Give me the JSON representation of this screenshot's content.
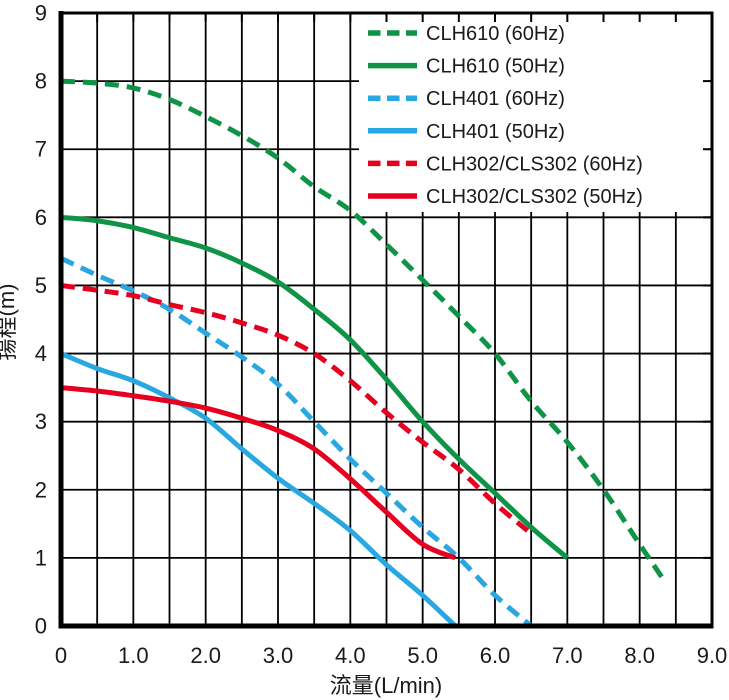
{
  "chart_data": {
    "type": "line",
    "title": "",
    "xlabel": "流量(L/min)",
    "ylabel": "揚程(m)",
    "xlim": [
      0,
      9
    ],
    "ylim": [
      0,
      9
    ],
    "x_ticks": {
      "values": [
        0,
        1,
        2,
        3,
        4,
        5,
        6,
        7,
        8,
        9
      ],
      "labels": [
        "0",
        "1.0",
        "2.0",
        "3.0",
        "4.0",
        "5.0",
        "6.0",
        "7.0",
        "8.0",
        "9.0"
      ]
    },
    "y_ticks": {
      "values": [
        0,
        1,
        2,
        3,
        4,
        5,
        6,
        7,
        8,
        9
      ],
      "labels": [
        "0",
        "1",
        "2",
        "3",
        "4",
        "5",
        "6",
        "7",
        "8",
        "9"
      ]
    },
    "x_grid_step": 0.5,
    "y_grid_step": 1,
    "grid": true,
    "legend_position": "top-right",
    "axis_color": "#000000",
    "text_color": "#1a1a1a",
    "series": [
      {
        "name": "CLH610 (60Hz)",
        "color": "#0f9447",
        "style": "dashed",
        "points": [
          [
            0,
            8.0
          ],
          [
            0.5,
            7.97
          ],
          [
            1,
            7.9
          ],
          [
            1.5,
            7.73
          ],
          [
            2,
            7.48
          ],
          [
            2.5,
            7.2
          ],
          [
            3,
            6.87
          ],
          [
            3.5,
            6.45
          ],
          [
            4,
            6.1
          ],
          [
            4.5,
            5.6
          ],
          [
            5,
            5.08
          ],
          [
            5.5,
            4.55
          ],
          [
            6,
            4.0
          ],
          [
            6.5,
            3.3
          ],
          [
            7,
            2.7
          ],
          [
            7.5,
            2.0
          ],
          [
            8,
            1.2
          ],
          [
            8.35,
            0.65
          ]
        ]
      },
      {
        "name": "CLH610 (50Hz)",
        "color": "#0f9447",
        "style": "solid",
        "points": [
          [
            0,
            6.0
          ],
          [
            0.5,
            5.95
          ],
          [
            1,
            5.85
          ],
          [
            1.5,
            5.7
          ],
          [
            2,
            5.55
          ],
          [
            2.5,
            5.33
          ],
          [
            3,
            5.05
          ],
          [
            3.5,
            4.65
          ],
          [
            4,
            4.2
          ],
          [
            4.5,
            3.62
          ],
          [
            5,
            3.0
          ],
          [
            5.5,
            2.45
          ],
          [
            6,
            1.95
          ],
          [
            6.5,
            1.45
          ],
          [
            7,
            1.0
          ]
        ]
      },
      {
        "name": "CLH401 (60Hz)",
        "color": "#29a7e0",
        "style": "dashed",
        "points": [
          [
            0,
            5.4
          ],
          [
            0.5,
            5.15
          ],
          [
            1,
            4.92
          ],
          [
            1.5,
            4.65
          ],
          [
            2,
            4.3
          ],
          [
            2.5,
            3.95
          ],
          [
            3,
            3.55
          ],
          [
            3.5,
            3.0
          ],
          [
            4,
            2.45
          ],
          [
            4.5,
            1.95
          ],
          [
            5,
            1.45
          ],
          [
            5.5,
            1.0
          ],
          [
            6,
            0.45
          ],
          [
            6.5,
            0
          ]
        ]
      },
      {
        "name": "CLH401 (50Hz)",
        "color": "#29a7e0",
        "style": "solid",
        "points": [
          [
            0,
            4.0
          ],
          [
            0.5,
            3.78
          ],
          [
            1,
            3.6
          ],
          [
            1.5,
            3.35
          ],
          [
            2,
            3.05
          ],
          [
            2.5,
            2.6
          ],
          [
            3,
            2.17
          ],
          [
            3.5,
            1.8
          ],
          [
            4,
            1.4
          ],
          [
            4.5,
            0.9
          ],
          [
            5,
            0.45
          ],
          [
            5.45,
            0
          ]
        ]
      },
      {
        "name": "CLH302/CLS302 (60Hz)",
        "color": "#e60020",
        "style": "dashed",
        "points": [
          [
            0,
            5.0
          ],
          [
            0.5,
            4.93
          ],
          [
            1,
            4.85
          ],
          [
            1.5,
            4.72
          ],
          [
            2,
            4.6
          ],
          [
            2.5,
            4.45
          ],
          [
            3,
            4.27
          ],
          [
            3.5,
            4.0
          ],
          [
            4,
            3.6
          ],
          [
            4.5,
            3.13
          ],
          [
            5,
            2.7
          ],
          [
            5.5,
            2.3
          ],
          [
            6,
            1.8
          ],
          [
            6.45,
            1.4
          ]
        ]
      },
      {
        "name": "CLH302/CLS302 (50Hz)",
        "color": "#e60020",
        "style": "solid",
        "points": [
          [
            0,
            3.5
          ],
          [
            0.5,
            3.45
          ],
          [
            1,
            3.38
          ],
          [
            1.5,
            3.3
          ],
          [
            2,
            3.2
          ],
          [
            2.5,
            3.05
          ],
          [
            3,
            2.87
          ],
          [
            3.5,
            2.6
          ],
          [
            4,
            2.16
          ],
          [
            4.5,
            1.67
          ],
          [
            5,
            1.2
          ],
          [
            5.45,
            1.0
          ]
        ]
      }
    ]
  }
}
